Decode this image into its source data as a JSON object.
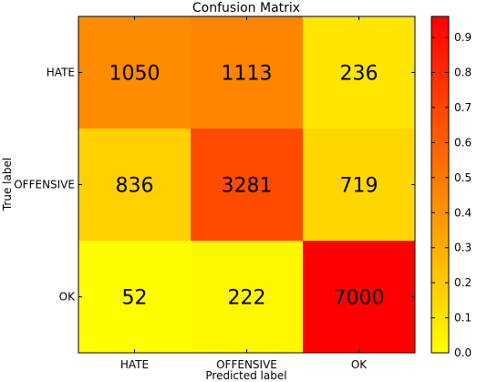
{
  "chart_data": {
    "type": "heatmap",
    "title": "Confusion Matrix",
    "xlabel": "Predicted label",
    "ylabel": "True label",
    "x_categories": [
      "HATE",
      "OFFENSIVE",
      "OK"
    ],
    "y_categories": [
      "HATE",
      "OFFENSIVE",
      "OK"
    ],
    "values": [
      [
        1050,
        1113,
        236
      ],
      [
        836,
        3281,
        719
      ],
      [
        52,
        222,
        7000
      ]
    ],
    "normalized": [
      [
        0.437,
        0.464,
        0.098
      ],
      [
        0.173,
        0.678,
        0.149
      ],
      [
        0.007,
        0.03,
        0.963
      ]
    ],
    "colormap": "autumn_r",
    "colorbar": {
      "range": [
        0.0,
        0.96
      ],
      "ticks": [
        "0.0",
        "0.1",
        "0.2",
        "0.3",
        "0.4",
        "0.5",
        "0.6",
        "0.7",
        "0.8",
        "0.9"
      ]
    },
    "colors": {
      "low": "#ffff00",
      "high": "#ff0000"
    }
  }
}
